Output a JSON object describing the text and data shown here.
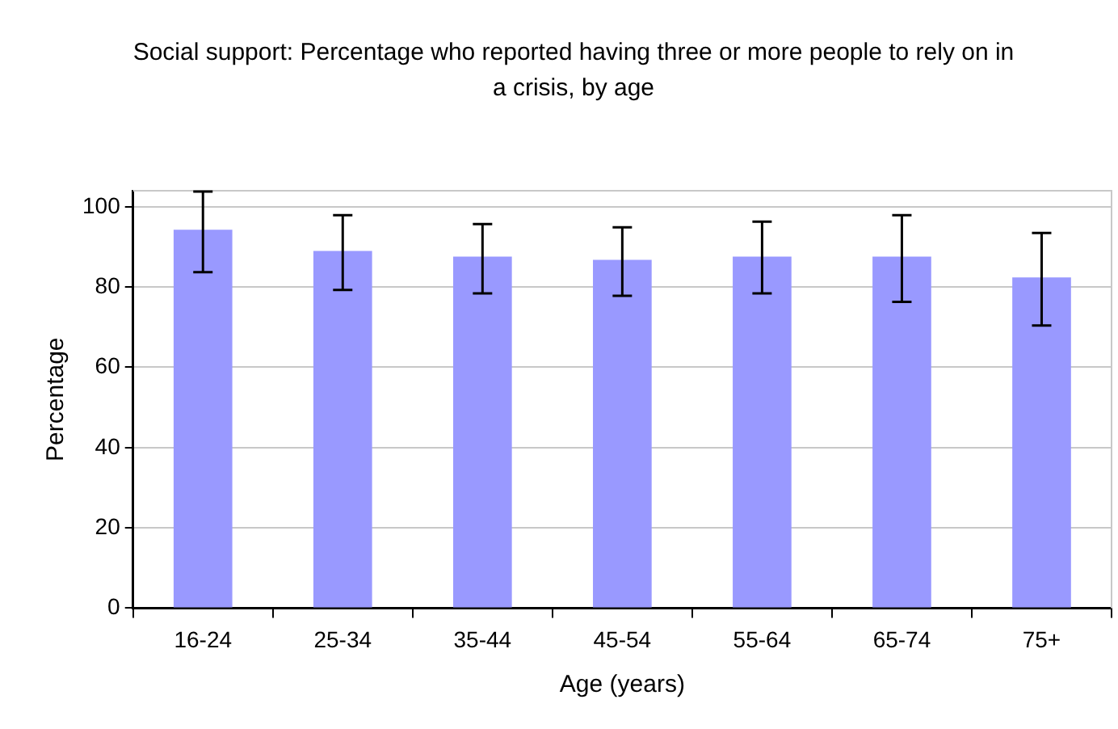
{
  "chart_data": {
    "type": "bar",
    "title": "Social support: Percentage who reported having three or more people to rely on in a crisis, by age",
    "xlabel": "Age (years)",
    "ylabel": "Percentage",
    "categories": [
      "16-24",
      "25-34",
      "35-44",
      "45-54",
      "55-64",
      "65-74",
      "75+"
    ],
    "values": [
      94.3,
      89.0,
      87.6,
      86.8,
      87.6,
      87.6,
      82.4
    ],
    "errors": [
      [
        83.7,
        103.8
      ],
      [
        79.3,
        97.9
      ],
      [
        78.4,
        95.7
      ],
      [
        77.8,
        94.9
      ],
      [
        78.4,
        96.3
      ],
      [
        76.3,
        97.9
      ],
      [
        70.4,
        93.5
      ]
    ],
    "color": "#9999ff",
    "ylim": [
      0,
      104
    ],
    "yticks": [
      0,
      20,
      40,
      60,
      80,
      100
    ],
    "grid": "y"
  }
}
